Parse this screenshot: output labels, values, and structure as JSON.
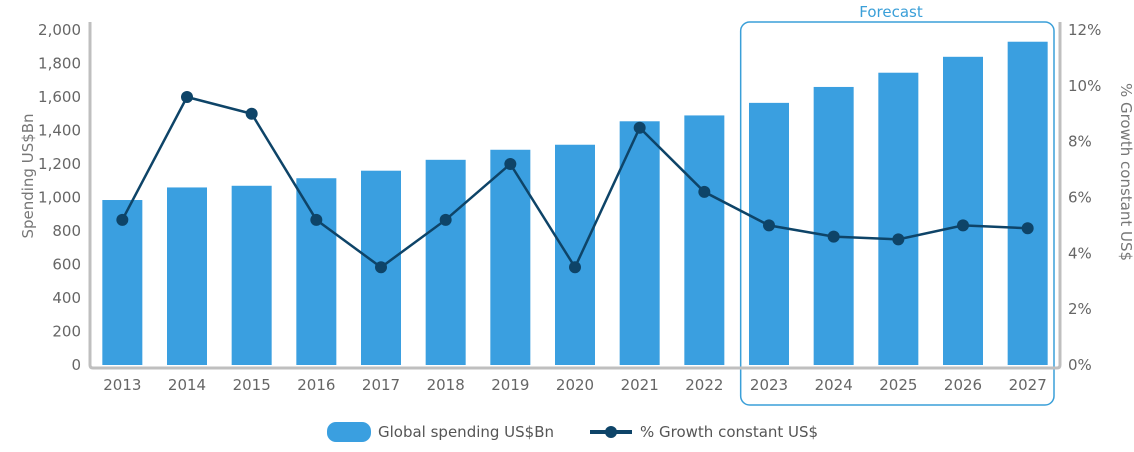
{
  "colors": {
    "bar": "#3a9fe0",
    "line": "#0e4468",
    "axis": "#bfbfbf",
    "forecast_box": "#3a9fd8",
    "tick_text": "#666666"
  },
  "forecast_label": "Forecast",
  "chart_data": {
    "type": "bar",
    "categories": [
      "2013",
      "2014",
      "2015",
      "2016",
      "2017",
      "2018",
      "2019",
      "2020",
      "2021",
      "2022",
      "2023",
      "2024",
      "2025",
      "2026",
      "2027"
    ],
    "series": [
      {
        "name": "Global spending US$Bn",
        "type": "bar",
        "axis": "left",
        "values": [
          985,
          1060,
          1070,
          1115,
          1160,
          1225,
          1285,
          1315,
          1455,
          1490,
          1565,
          1660,
          1745,
          1840,
          1930
        ]
      },
      {
        "name": "% Growth constant US$",
        "type": "line",
        "axis": "right",
        "values": [
          5.2,
          9.6,
          9.0,
          5.2,
          3.5,
          5.2,
          7.2,
          3.5,
          8.5,
          6.2,
          5.0,
          4.6,
          4.5,
          5.0,
          4.9
        ]
      }
    ],
    "ylabel": "Spending US$Bn",
    "ylim": [
      0,
      2000
    ],
    "yticks": [
      "0",
      "200",
      "400",
      "600",
      "800",
      "1,000",
      "1,200",
      "1,400",
      "1,600",
      "1,800",
      "2,000"
    ],
    "y2label": "% Growth constant US$",
    "y2lim": [
      0,
      12
    ],
    "y2ticks": [
      "0%",
      "2%",
      "4%",
      "6%",
      "8%",
      "10%",
      "12%"
    ],
    "forecast_range": [
      "2023",
      "2027"
    ],
    "legend": {
      "position": "bottom"
    },
    "grid": false
  }
}
